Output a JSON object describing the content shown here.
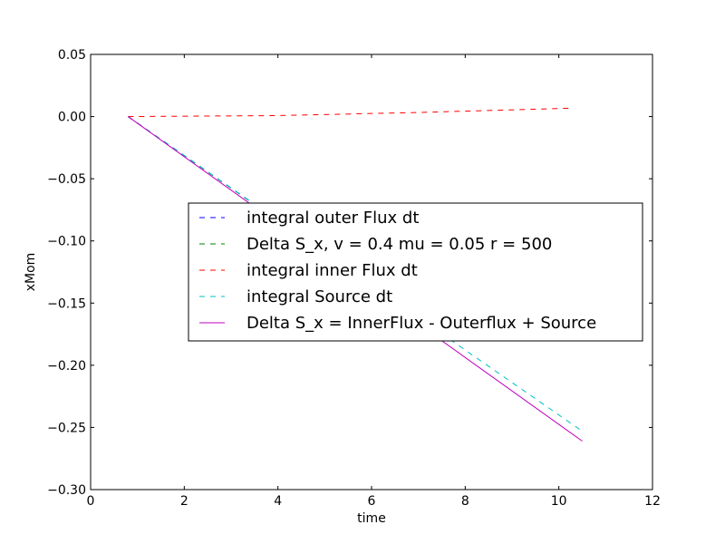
{
  "chart_data": {
    "type": "line",
    "title": "",
    "xlabel": "time",
    "ylabel": "xMom",
    "xlim": [
      0,
      12
    ],
    "ylim": [
      -0.3,
      0.05
    ],
    "x_ticks": [
      0,
      2,
      4,
      6,
      8,
      10,
      12
    ],
    "x_tick_labels": [
      "0",
      "2",
      "4",
      "6",
      "8",
      "10",
      "12"
    ],
    "y_ticks": [
      0.05,
      0.0,
      -0.05,
      -0.1,
      -0.15,
      -0.2,
      -0.25,
      -0.3
    ],
    "y_tick_labels": [
      "0.05",
      "0.00",
      "−0.05",
      "−0.10",
      "−0.15",
      "−0.20",
      "−0.25",
      "−0.30"
    ],
    "grid": false,
    "legend_position": "center-right",
    "series": [
      {
        "name": "integral outer Flux dt",
        "color": "#0000ff",
        "style": "dashed",
        "x": [
          0.8,
          3.4
        ],
        "y": [
          0.0,
          -0.068
        ]
      },
      {
        "name": "Delta S_x, v = 0.4 mu = 0.05 r = 500",
        "color": "#008000",
        "style": "dashed",
        "x": [
          0.8,
          3.4
        ],
        "y": [
          0.0,
          -0.068
        ]
      },
      {
        "name": "integral inner Flux dt",
        "color": "#ff0000",
        "style": "dashed",
        "x": [
          0.8,
          4.0,
          7.0,
          10.3
        ],
        "y": [
          0.0,
          0.0008,
          0.0033,
          0.0068
        ]
      },
      {
        "name": "integral Source dt",
        "color": "#00bfbf",
        "style": "dashed",
        "x": [
          0.8,
          10.5
        ],
        "y": [
          0.0,
          -0.253
        ]
      },
      {
        "name": "Delta S_x = InnerFlux - Outerflux + Source",
        "color": "#bf00bf",
        "style": "solid",
        "x": [
          0.8,
          10.5
        ],
        "y": [
          0.0,
          -0.261
        ]
      }
    ]
  }
}
